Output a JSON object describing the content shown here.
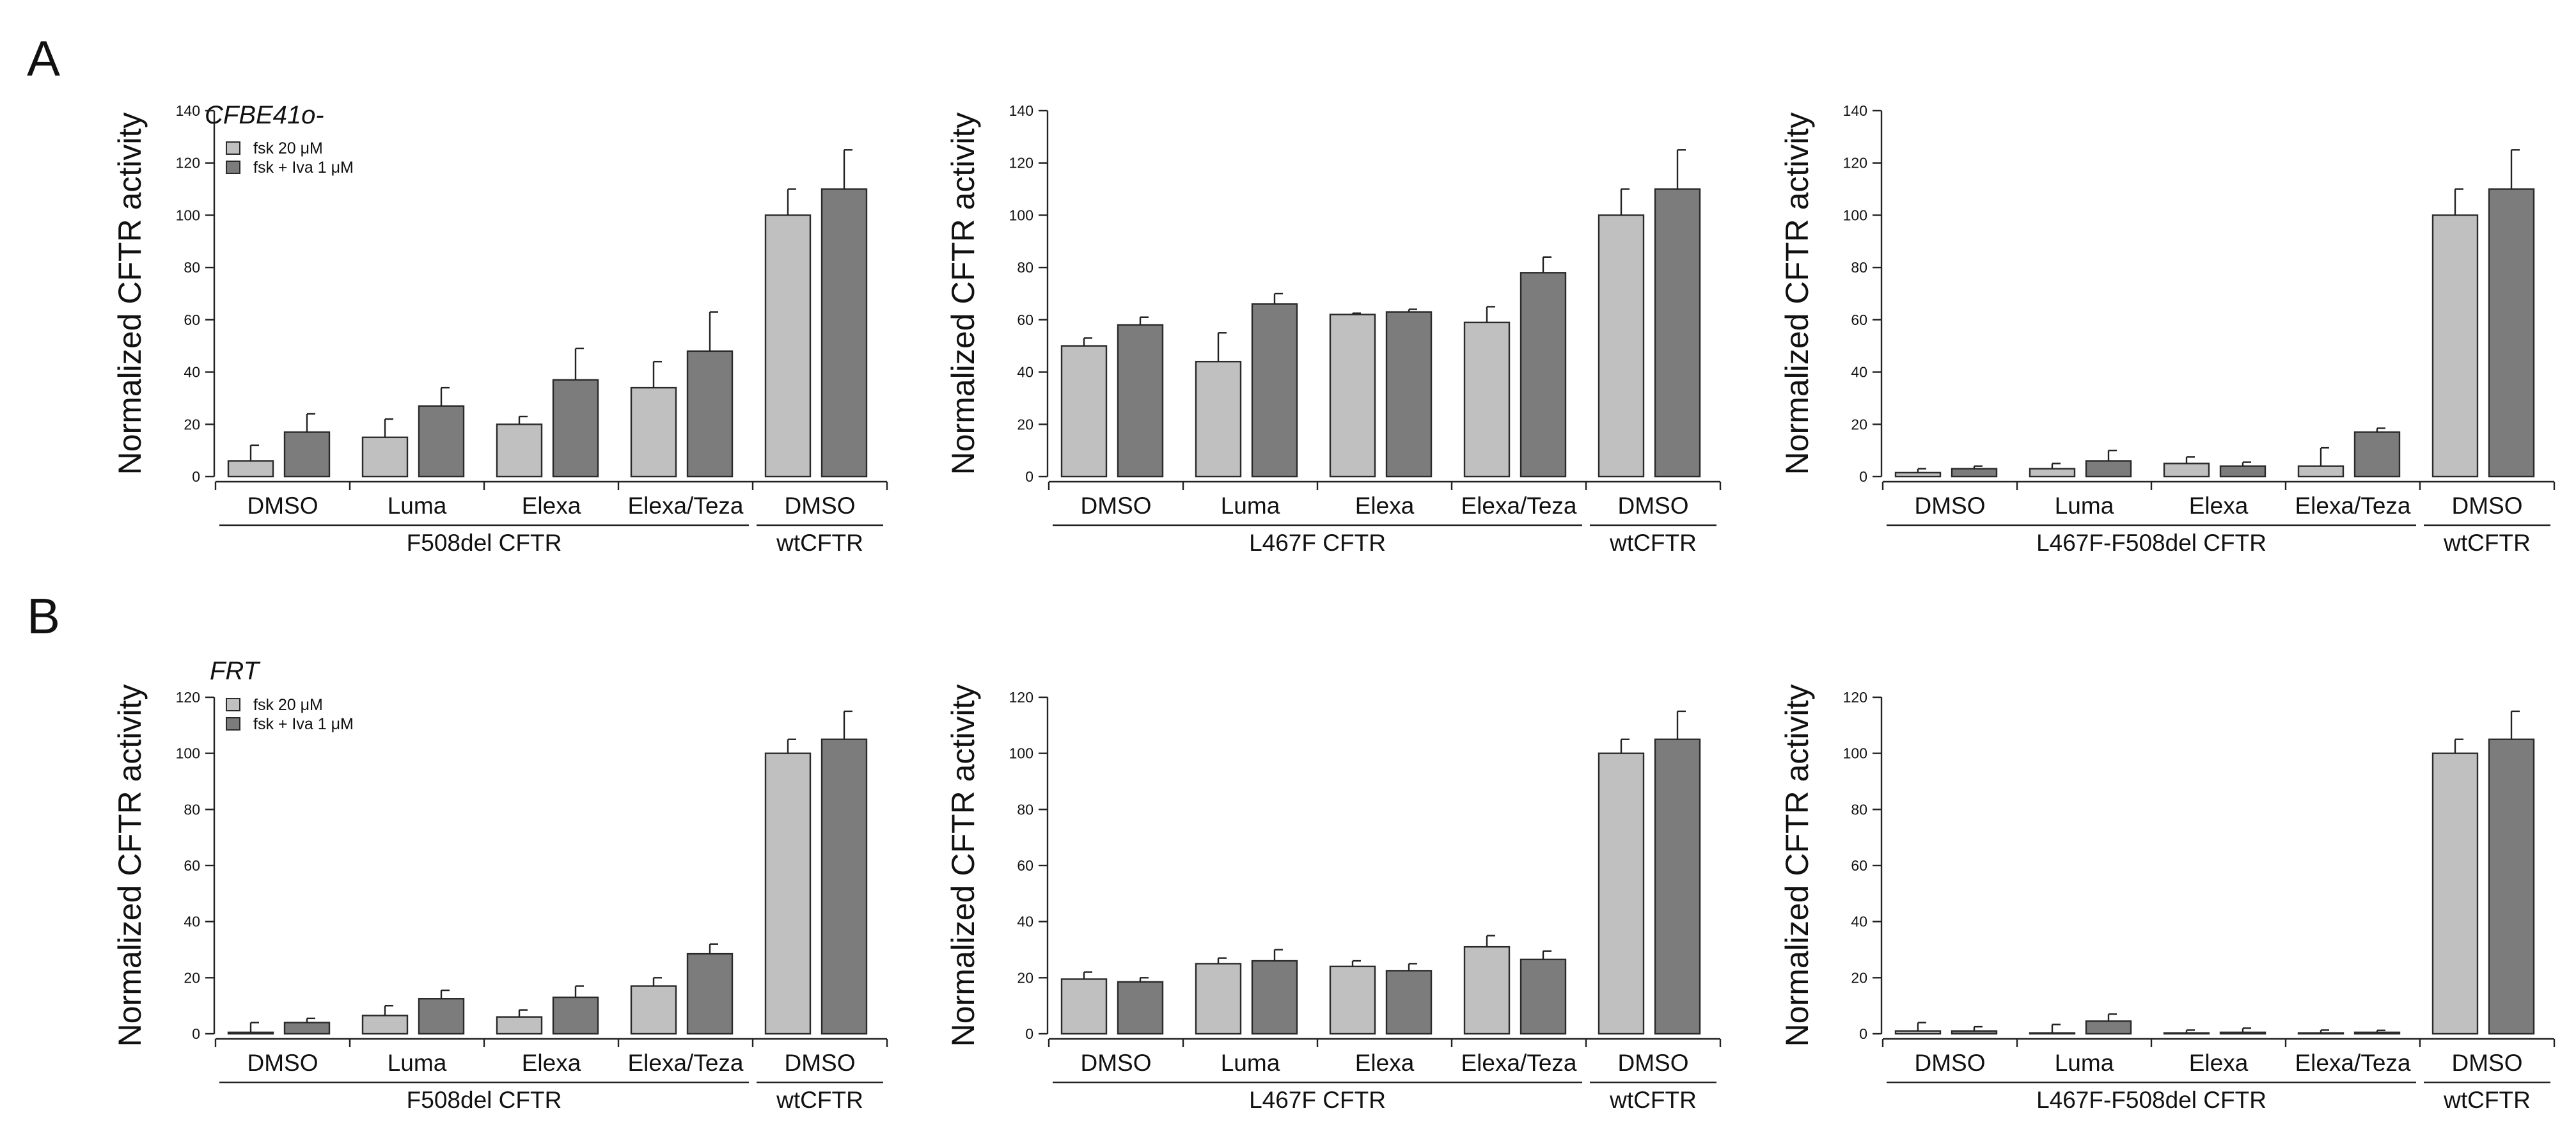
{
  "colors": {
    "fsk": "#c0c0c0",
    "fsk_iva": "#7c7c7c",
    "axis": "#222222",
    "text": "#111111"
  },
  "rows": [
    {
      "letter": "A",
      "cell_line": "CFBE41o-"
    },
    {
      "letter": "B",
      "cell_line": "FRT"
    }
  ],
  "legend": {
    "fsk": "fsk 20 μM",
    "fsk_iva": "fsk + Iva 1 μM"
  },
  "chart_data": [
    {
      "type": "bar",
      "row": 0,
      "col": 0,
      "ylabel": "Normalized CFTR activity",
      "ylim": [
        0,
        140
      ],
      "yticks": [
        0,
        20,
        40,
        60,
        80,
        100,
        120,
        140
      ],
      "categories": [
        "DMSO",
        "Luma",
        "Elexa",
        "Elexa/Teza",
        "DMSO"
      ],
      "groups": [
        {
          "label": "F508del CFTR",
          "span": [
            0,
            3
          ]
        },
        {
          "label": "wtCFTR",
          "span": [
            4,
            4
          ]
        }
      ],
      "series": [
        {
          "name": "fsk 20 μM",
          "values": [
            6,
            15,
            20,
            34,
            100
          ],
          "errors": [
            6,
            7,
            3,
            10,
            10
          ]
        },
        {
          "name": "fsk + Iva 1 μM",
          "values": [
            17,
            27,
            37,
            48,
            110
          ],
          "errors": [
            7,
            7,
            12,
            15,
            15
          ]
        }
      ]
    },
    {
      "type": "bar",
      "row": 0,
      "col": 1,
      "ylabel": "Normalized CFTR activity",
      "ylim": [
        0,
        140
      ],
      "yticks": [
        0,
        20,
        40,
        60,
        80,
        100,
        120,
        140
      ],
      "categories": [
        "DMSO",
        "Luma",
        "Elexa",
        "Elexa/Teza",
        "DMSO"
      ],
      "groups": [
        {
          "label": "L467F CFTR",
          "span": [
            0,
            3
          ]
        },
        {
          "label": "wtCFTR",
          "span": [
            4,
            4
          ]
        }
      ],
      "series": [
        {
          "name": "fsk 20 μM",
          "values": [
            50,
            44,
            62,
            59,
            100
          ],
          "errors": [
            3,
            11,
            0.5,
            6,
            10
          ]
        },
        {
          "name": "fsk + Iva 1 μM",
          "values": [
            58,
            66,
            63,
            78,
            110
          ],
          "errors": [
            3,
            4,
            1,
            6,
            15
          ]
        }
      ]
    },
    {
      "type": "bar",
      "row": 0,
      "col": 2,
      "ylabel": "Normalized CFTR activity",
      "ylim": [
        0,
        140
      ],
      "yticks": [
        0,
        20,
        40,
        60,
        80,
        100,
        120,
        140
      ],
      "categories": [
        "DMSO",
        "Luma",
        "Elexa",
        "Elexa/Teza",
        "DMSO"
      ],
      "groups": [
        {
          "label": "L467F-F508del CFTR",
          "span": [
            0,
            3
          ]
        },
        {
          "label": "wtCFTR",
          "span": [
            4,
            4
          ]
        }
      ],
      "series": [
        {
          "name": "fsk 20 μM",
          "values": [
            1.5,
            3,
            5,
            4,
            100
          ],
          "errors": [
            1.5,
            2,
            2.5,
            7,
            10
          ]
        },
        {
          "name": "fsk + Iva 1 μM",
          "values": [
            3,
            6,
            4,
            17,
            110
          ],
          "errors": [
            1,
            4,
            1.5,
            1.5,
            15
          ]
        }
      ]
    },
    {
      "type": "bar",
      "row": 1,
      "col": 0,
      "ylabel": "Normalized CFTR activity",
      "ylim": [
        0,
        120
      ],
      "yticks": [
        0,
        20,
        40,
        60,
        80,
        100,
        120
      ],
      "categories": [
        "DMSO",
        "Luma",
        "Elexa",
        "Elexa/Teza",
        "DMSO"
      ],
      "groups": [
        {
          "label": "F508del CFTR",
          "span": [
            0,
            3
          ]
        },
        {
          "label": "wtCFTR",
          "span": [
            4,
            4
          ]
        }
      ],
      "series": [
        {
          "name": "fsk 20 μM",
          "values": [
            0.5,
            6.5,
            6,
            17,
            100
          ],
          "errors": [
            3.5,
            3.5,
            2.5,
            3,
            5
          ]
        },
        {
          "name": "fsk + Iva 1 μM",
          "values": [
            4,
            12.5,
            13,
            28.5,
            105
          ],
          "errors": [
            1.5,
            3,
            4,
            3.5,
            10
          ]
        }
      ]
    },
    {
      "type": "bar",
      "row": 1,
      "col": 1,
      "ylabel": "Normalized CFTR activity",
      "ylim": [
        0,
        120
      ],
      "yticks": [
        0,
        20,
        40,
        60,
        80,
        100,
        120
      ],
      "categories": [
        "DMSO",
        "Luma",
        "Elexa",
        "Elexa/Teza",
        "DMSO"
      ],
      "groups": [
        {
          "label": "L467F CFTR",
          "span": [
            0,
            3
          ]
        },
        {
          "label": "wtCFTR",
          "span": [
            4,
            4
          ]
        }
      ],
      "series": [
        {
          "name": "fsk 20 μM",
          "values": [
            19.5,
            25,
            24,
            31,
            100
          ],
          "errors": [
            2.5,
            2,
            2,
            4,
            5
          ]
        },
        {
          "name": "fsk + Iva 1 μM",
          "values": [
            18.5,
            26,
            22.5,
            26.5,
            105
          ],
          "errors": [
            1.5,
            4,
            2.5,
            3,
            10
          ]
        }
      ]
    },
    {
      "type": "bar",
      "row": 1,
      "col": 2,
      "ylabel": "Normalized CFTR activity",
      "ylim": [
        0,
        120
      ],
      "yticks": [
        0,
        20,
        40,
        60,
        80,
        100,
        120
      ],
      "categories": [
        "DMSO",
        "Luma",
        "Elexa",
        "Elexa/Teza",
        "DMSO"
      ],
      "groups": [
        {
          "label": "L467F-F508del CFTR",
          "span": [
            0,
            3
          ]
        },
        {
          "label": "wtCFTR",
          "span": [
            4,
            4
          ]
        }
      ],
      "series": [
        {
          "name": "fsk 20 μM",
          "values": [
            1,
            0.3,
            0.3,
            0.3,
            100
          ],
          "errors": [
            3,
            3,
            1,
            1,
            5
          ]
        },
        {
          "name": "fsk + Iva 1 μM",
          "values": [
            1,
            4.5,
            0.5,
            0.5,
            105
          ],
          "errors": [
            1.5,
            2.5,
            1.5,
            0.7,
            10
          ]
        }
      ]
    }
  ]
}
